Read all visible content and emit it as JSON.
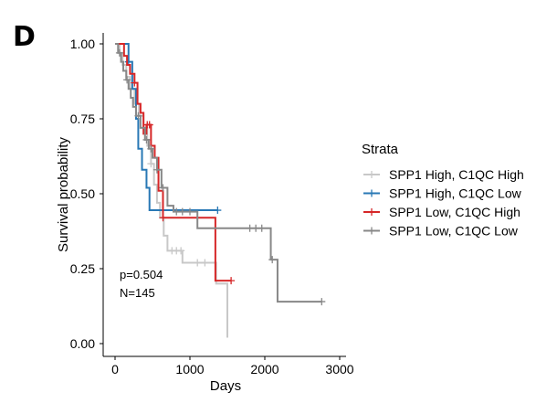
{
  "panel_label": "D",
  "chart_data": {
    "type": "line",
    "subtype": "kaplan-meier",
    "xlabel": "Days",
    "ylabel": "Survival probability",
    "xlim": [
      0,
      3000
    ],
    "ylim": [
      0,
      1
    ],
    "x_ticks": [
      0,
      1000,
      2000,
      3000
    ],
    "x_tick_labels": [
      "0",
      "1000",
      "2000",
      "3000"
    ],
    "y_ticks": [
      0,
      0.25,
      0.5,
      0.75,
      1
    ],
    "y_tick_labels": [
      "0.00",
      "0.25",
      "0.50",
      "0.75",
      "1.00"
    ],
    "grid": false,
    "legend": {
      "title": "Strata",
      "position": "right"
    },
    "annotations": [
      "p=0.504",
      "N=145"
    ],
    "series": [
      {
        "name": "SPP1 High, C1QC High",
        "color": "#c8c8c8",
        "steps": [
          [
            0,
            1
          ],
          [
            60,
            0.97
          ],
          [
            100,
            0.93
          ],
          [
            150,
            0.89
          ],
          [
            200,
            0.85
          ],
          [
            260,
            0.8
          ],
          [
            320,
            0.76
          ],
          [
            380,
            0.72
          ],
          [
            430,
            0.66
          ],
          [
            480,
            0.6
          ],
          [
            520,
            0.53
          ],
          [
            560,
            0.47
          ],
          [
            600,
            0.42
          ],
          [
            650,
            0.36
          ],
          [
            700,
            0.31
          ],
          [
            900,
            0.27
          ],
          [
            1350,
            0.2
          ],
          [
            1500,
            0.02
          ]
        ],
        "end_x": 1500,
        "censor_x": [
          480,
          760,
          820,
          880,
          1100,
          1200
        ]
      },
      {
        "name": "SPP1 High, C1QC Low",
        "color": "#2878b5",
        "steps": [
          [
            0,
            1
          ],
          [
            180,
            0.94
          ],
          [
            230,
            0.85
          ],
          [
            280,
            0.75
          ],
          [
            310,
            0.65
          ],
          [
            360,
            0.58
          ],
          [
            420,
            0.52
          ],
          [
            460,
            0.445
          ]
        ],
        "end_x": 1370,
        "censor_x": [
          180,
          1370
        ]
      },
      {
        "name": "SPP1 Low, C1QC High",
        "color": "#d62728",
        "steps": [
          [
            0,
            1
          ],
          [
            120,
            0.96
          ],
          [
            160,
            0.93
          ],
          [
            200,
            0.9
          ],
          [
            260,
            0.87
          ],
          [
            300,
            0.8
          ],
          [
            340,
            0.77
          ],
          [
            380,
            0.7
          ],
          [
            420,
            0.73
          ],
          [
            480,
            0.66
          ],
          [
            530,
            0.62
          ],
          [
            580,
            0.51
          ],
          [
            640,
            0.42
          ],
          [
            1340,
            0.21
          ]
        ],
        "end_x": 1550,
        "censor_x": [
          260,
          430,
          460,
          640,
          1550
        ]
      },
      {
        "name": "SPP1 Low, C1QC Low",
        "color": "#888888",
        "steps": [
          [
            0,
            1
          ],
          [
            40,
            0.97
          ],
          [
            80,
            0.94
          ],
          [
            110,
            0.91
          ],
          [
            150,
            0.88
          ],
          [
            180,
            0.85
          ],
          [
            210,
            0.82
          ],
          [
            240,
            0.79
          ],
          [
            280,
            0.76
          ],
          [
            340,
            0.72
          ],
          [
            400,
            0.68
          ],
          [
            450,
            0.65
          ],
          [
            500,
            0.62
          ],
          [
            560,
            0.58
          ],
          [
            620,
            0.52
          ],
          [
            700,
            0.46
          ],
          [
            780,
            0.44
          ],
          [
            1100,
            0.385
          ],
          [
            2080,
            0.28
          ],
          [
            2170,
            0.14
          ]
        ],
        "end_x": 2760,
        "censor_x": [
          60,
          160,
          310,
          420,
          480,
          560,
          640,
          820,
          900,
          1000,
          1800,
          1880,
          1960,
          2100,
          2760
        ]
      }
    ]
  }
}
